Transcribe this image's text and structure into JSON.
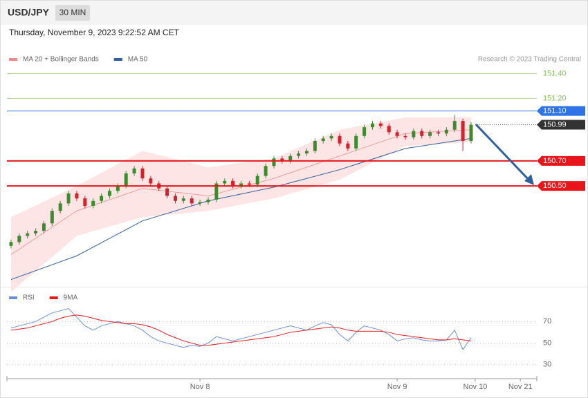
{
  "header": {
    "symbol": "USD/JPY",
    "interval": "30 MIN",
    "timestamp": "Thursday, November 9, 2023 9:22:52 AM CET",
    "credit": "Research © 2023 Trading Central"
  },
  "chart_data": [
    {
      "type": "candlestick",
      "legend": [
        {
          "name": "MA 20 + Bollinger Bands",
          "color": "#f08a8a"
        },
        {
          "name": "MA 50",
          "color": "#2f5f9e"
        }
      ],
      "up_color": "#3d8b2f",
      "down_color": "#d3222a",
      "xlim": [
        -0.5,
        64
      ],
      "ylim": [
        149.72,
        151.48
      ],
      "open": [
        150.02,
        150.05,
        150.1,
        150.12,
        150.14,
        150.2,
        150.3,
        150.36,
        150.44,
        150.4,
        150.34,
        150.38,
        150.42,
        150.46,
        150.5,
        150.6,
        150.64,
        150.56,
        150.52,
        150.48,
        150.42,
        150.38,
        150.4,
        150.36,
        150.37,
        150.39,
        150.52,
        150.54,
        150.5,
        150.52,
        150.51,
        150.58,
        150.66,
        150.72,
        150.7,
        150.74,
        150.76,
        150.78,
        150.86,
        150.88,
        150.9,
        150.84,
        150.8,
        150.9,
        150.97,
        151.0,
        150.98,
        150.93,
        150.9,
        150.89,
        150.94,
        150.9,
        150.93,
        150.92,
        150.95,
        151.02,
        150.86
      ],
      "high": [
        150.07,
        150.12,
        150.14,
        150.16,
        150.22,
        150.32,
        150.38,
        150.46,
        150.46,
        150.42,
        150.4,
        150.44,
        150.48,
        150.52,
        150.62,
        150.66,
        150.66,
        150.58,
        150.54,
        150.5,
        150.44,
        150.42,
        150.42,
        150.39,
        150.41,
        150.54,
        150.56,
        150.56,
        150.54,
        150.54,
        150.6,
        150.68,
        150.74,
        150.74,
        150.76,
        150.78,
        150.8,
        150.88,
        150.9,
        150.92,
        150.92,
        150.86,
        150.92,
        150.99,
        151.02,
        151.02,
        151.0,
        150.95,
        150.92,
        150.96,
        150.96,
        150.95,
        150.95,
        150.97,
        151.07,
        151.04,
        151.01
      ],
      "low": [
        150.0,
        150.03,
        150.08,
        150.1,
        150.12,
        150.18,
        150.28,
        150.34,
        150.38,
        150.32,
        150.32,
        150.36,
        150.4,
        150.44,
        150.48,
        150.58,
        150.54,
        150.5,
        150.46,
        150.4,
        150.36,
        150.36,
        150.34,
        150.34,
        150.35,
        150.37,
        150.5,
        150.48,
        150.48,
        150.49,
        150.49,
        150.56,
        150.64,
        150.68,
        150.68,
        150.72,
        150.74,
        150.76,
        150.84,
        150.86,
        150.82,
        150.78,
        150.78,
        150.88,
        150.95,
        150.96,
        150.91,
        150.88,
        150.87,
        150.87,
        150.88,
        150.88,
        150.9,
        150.9,
        150.93,
        150.78,
        150.84
      ],
      "close": [
        150.05,
        150.1,
        150.12,
        150.14,
        150.2,
        150.3,
        150.36,
        150.44,
        150.4,
        150.34,
        150.38,
        150.42,
        150.46,
        150.5,
        150.6,
        150.64,
        150.56,
        150.52,
        150.48,
        150.42,
        150.38,
        150.4,
        150.36,
        150.37,
        150.39,
        150.52,
        150.54,
        150.5,
        150.52,
        150.51,
        150.58,
        150.66,
        150.72,
        150.7,
        150.74,
        150.76,
        150.78,
        150.86,
        150.88,
        150.9,
        150.84,
        150.8,
        150.9,
        150.97,
        151.0,
        150.98,
        150.93,
        150.9,
        150.89,
        150.94,
        150.9,
        150.93,
        150.92,
        150.95,
        151.02,
        150.86,
        150.99
      ],
      "lines_x": [
        0,
        8,
        16,
        24,
        32,
        40,
        48,
        56
      ],
      "ma20": [
        149.95,
        150.3,
        150.48,
        150.42,
        150.56,
        150.74,
        150.92,
        150.95
      ],
      "bb_upper": [
        150.25,
        150.5,
        150.78,
        150.65,
        150.72,
        150.95,
        151.05,
        151.05
      ],
      "bb_lower": [
        149.65,
        150.1,
        150.25,
        150.3,
        150.4,
        150.55,
        150.82,
        150.85
      ],
      "ma50": [
        149.75,
        149.94,
        150.22,
        150.38,
        150.49,
        150.63,
        150.8,
        150.88
      ],
      "levels": [
        {
          "value": 151.4,
          "label": "151.40",
          "color": "#86c25a",
          "kind": "plain"
        },
        {
          "value": 151.2,
          "label": "151.20",
          "color": "#86c25a",
          "kind": "plain"
        },
        {
          "value": 151.1,
          "label": "151.10",
          "color": "#2f74e6",
          "kind": "box"
        },
        {
          "value": 150.99,
          "label": "150.99",
          "color": "#333333",
          "kind": "dotted"
        },
        {
          "value": 150.7,
          "label": "150.70",
          "color": "#e8151b",
          "kind": "thick"
        },
        {
          "value": 150.5,
          "label": "150.50",
          "color": "#e8151b",
          "kind": "thick"
        }
      ]
    },
    {
      "type": "line",
      "series": [
        {
          "name": "RSI",
          "color": "#6a8edb",
          "values": [
            64,
            66,
            68,
            70,
            74,
            78,
            80,
            82,
            74,
            66,
            62,
            66,
            68,
            70,
            68,
            66,
            62,
            56,
            52,
            50,
            48,
            46,
            48,
            47,
            50,
            56,
            54,
            52,
            54,
            56,
            58,
            60,
            62,
            64,
            66,
            64,
            62,
            66,
            69,
            67,
            58,
            52,
            60,
            66,
            64,
            62,
            58,
            52,
            54,
            55,
            53,
            52,
            52,
            53,
            62,
            44,
            55
          ]
        },
        {
          "name": "9MA",
          "color": "#e8151b",
          "values": [
            62,
            63,
            64,
            66,
            68,
            70,
            73,
            75,
            76,
            75,
            73,
            71,
            70,
            69,
            68,
            68,
            67,
            65,
            62,
            58,
            55,
            52,
            50,
            48,
            48,
            49,
            50,
            51,
            52,
            53,
            54,
            55,
            56,
            58,
            60,
            61,
            62,
            63,
            64,
            65,
            64,
            62,
            61,
            61,
            61,
            61,
            60,
            58,
            57,
            56,
            55,
            54,
            53,
            53,
            54,
            53,
            52
          ]
        }
      ],
      "xlim": [
        -0.5,
        64
      ],
      "ylim": [
        19,
        99
      ],
      "yticks": [
        70,
        50,
        30
      ],
      "grid": true,
      "xticks": [
        {
          "value": 23,
          "label": "Nov 8"
        },
        {
          "value": 47,
          "label": "Nov 9"
        },
        {
          "value": 56.5,
          "label": "Nov 10"
        },
        {
          "value": 62,
          "label": "Nov 21"
        }
      ]
    }
  ]
}
